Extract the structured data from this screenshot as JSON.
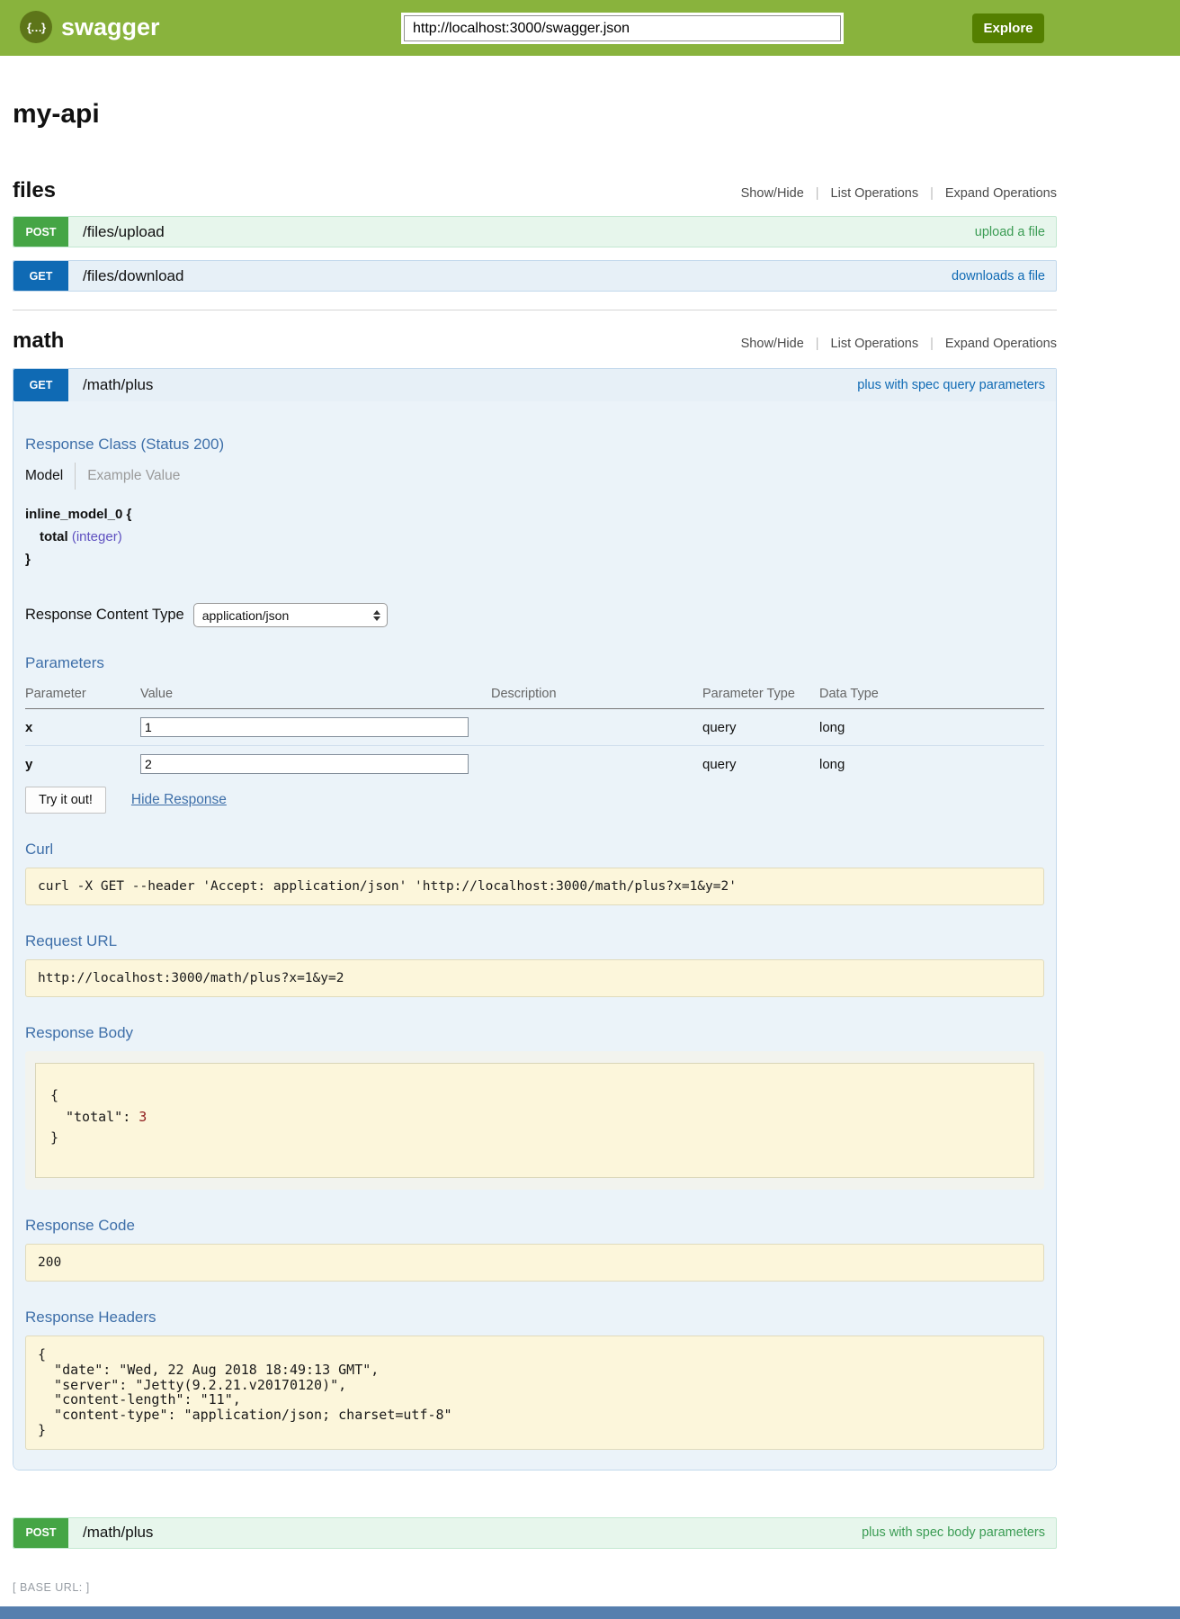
{
  "header": {
    "logo_glyph": "{…}",
    "logo_text": "swagger",
    "url_input_value": "http://localhost:3000/swagger.json",
    "explore_label": "Explore"
  },
  "page_title": "my-api",
  "section_controls": {
    "show_hide": "Show/Hide",
    "list_operations": "List Operations",
    "expand_operations": "Expand Operations",
    "separator": "|"
  },
  "files_section": {
    "name": "files",
    "upload": {
      "method": "POST",
      "path": "/files/upload",
      "summary": "upload a file"
    },
    "download": {
      "method": "GET",
      "path": "/files/download",
      "summary": "downloads a file"
    }
  },
  "math_section": {
    "name": "math",
    "get_plus": {
      "method": "GET",
      "path": "/math/plus",
      "summary": "plus with spec query parameters",
      "response_class": {
        "heading": "Response Class (Status 200)",
        "tab_model": "Model",
        "tab_example": "Example Value",
        "model_open": "inline_model_0 {",
        "prop_name": "total",
        "prop_type": "(integer)",
        "model_close": "}"
      },
      "response_content_type": {
        "label": "Response Content Type",
        "value": "application/json"
      },
      "parameters": {
        "heading": "Parameters",
        "columns": [
          "Parameter",
          "Value",
          "Description",
          "Parameter Type",
          "Data Type"
        ],
        "rows": [
          {
            "name": "x",
            "value": "1",
            "description": "",
            "param_type": "query",
            "data_type": "long"
          },
          {
            "name": "y",
            "value": "2",
            "description": "",
            "param_type": "query",
            "data_type": "long"
          }
        ]
      },
      "try_button_label": "Try it out!",
      "hide_response_label": "Hide Response",
      "curl": {
        "heading": "Curl",
        "command": "curl -X GET --header 'Accept: application/json' 'http://localhost:3000/math/plus?x=1&y=2'"
      },
      "request_url": {
        "heading": "Request URL",
        "value": "http://localhost:3000/math/plus?x=1&y=2"
      },
      "response_body": {
        "heading": "Response Body",
        "open_brace": "{",
        "key": "\"total\":",
        "value": "3",
        "close_brace": "}"
      },
      "response_code": {
        "heading": "Response Code",
        "value": "200"
      },
      "response_headers": {
        "heading": "Response Headers",
        "json": "{\n  \"date\": \"Wed, 22 Aug 2018 18:49:13 GMT\",\n  \"server\": \"Jetty(9.2.21.v20170120)\",\n  \"content-length\": \"11\",\n  \"content-type\": \"application/json; charset=utf-8\"\n}"
      }
    },
    "post_plus": {
      "method": "POST",
      "path": "/math/plus",
      "summary": "plus with spec body parameters"
    }
  },
  "footer": {
    "base_url_label": "[ BASE URL: ]"
  },
  "colors": {
    "header_green": "#89b33d",
    "explore_button_green": "#547f00",
    "post_badge_green": "#45a545",
    "get_badge_blue": "#0f6ab4",
    "post_row_bg": "#e7f6ec",
    "get_row_bg": "#e7f0f7",
    "expanded_panel_bg": "#ebf3f9",
    "code_block_bg": "#fcf6db",
    "section_heading_blue": "#3e6fa9",
    "json_number_red": "#8f1d1d",
    "model_type_violet": "#5e50c0"
  }
}
